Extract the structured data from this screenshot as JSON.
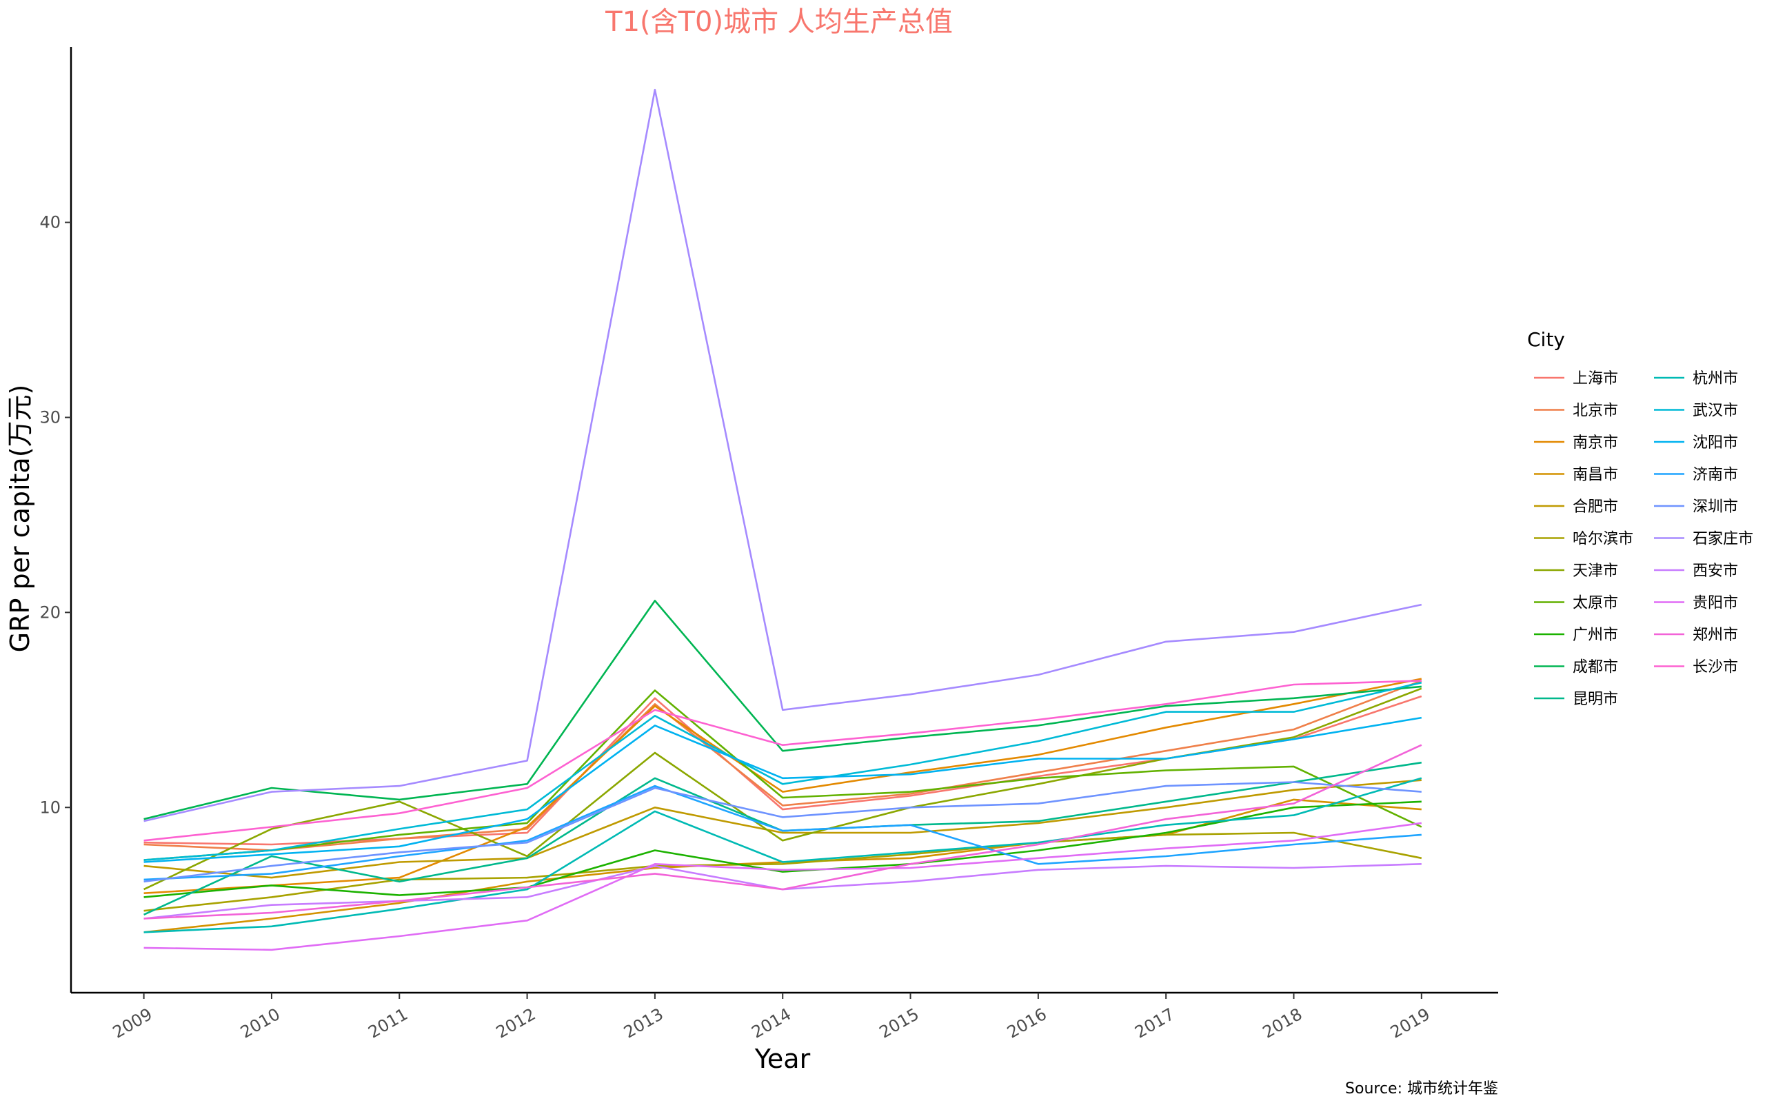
{
  "chart_data": {
    "type": "line",
    "title": "T1(含T0)城市 人均生产总值",
    "xlabel": "Year",
    "ylabel": "GRP per capita(万元)",
    "caption": "Source: 城市统计年鉴",
    "legend_title": "City",
    "legend_position": "right",
    "grid": false,
    "x": [
      2009,
      2010,
      2011,
      2012,
      2013,
      2014,
      2015,
      2016,
      2017,
      2018,
      2019
    ],
    "xlim": [
      2008.43,
      2019.6
    ],
    "ylim": [
      0.5,
      49
    ],
    "y_ticks": [
      10,
      20,
      30,
      40
    ],
    "series": [
      {
        "name": "上海市",
        "color": "#F8766D",
        "values": [
          8.2,
          8.1,
          8.4,
          8.7,
          15.6,
          9.9,
          10.6,
          11.6,
          12.5,
          13.5,
          15.7
        ]
      },
      {
        "name": "北京市",
        "color": "#EF7F49",
        "values": [
          8.1,
          7.8,
          8.4,
          8.9,
          15.3,
          10.1,
          10.7,
          11.8,
          12.9,
          14.0,
          16.5
        ]
      },
      {
        "name": "南京市",
        "color": "#E38900",
        "values": [
          5.6,
          6.0,
          6.4,
          9.0,
          15.2,
          10.8,
          11.8,
          12.7,
          14.1,
          15.3,
          16.6
        ]
      },
      {
        "name": "南昌市",
        "color": "#D39200",
        "values": [
          3.6,
          4.3,
          5.1,
          6.2,
          6.9,
          7.2,
          7.4,
          8.2,
          8.6,
          10.4,
          9.9
        ]
      },
      {
        "name": "合肥市",
        "color": "#BF9A00",
        "values": [
          7.0,
          6.4,
          7.2,
          7.4,
          10.0,
          8.7,
          8.7,
          9.2,
          10.0,
          10.9,
          11.4
        ]
      },
      {
        "name": "哈尔滨市",
        "color": "#A8A200",
        "values": [
          4.7,
          5.4,
          6.3,
          6.4,
          7.0,
          7.1,
          7.6,
          8.2,
          8.6,
          8.7,
          7.4
        ]
      },
      {
        "name": "天津市",
        "color": "#8BA700",
        "values": [
          5.8,
          8.9,
          10.3,
          7.5,
          12.8,
          8.3,
          10.0,
          11.2,
          12.5,
          13.6,
          16.1
        ]
      },
      {
        "name": "太原市",
        "color": "#62B100",
        "values": [
          7.3,
          7.8,
          8.6,
          9.2,
          16.0,
          10.5,
          10.8,
          11.5,
          11.9,
          12.1,
          9.0
        ]
      },
      {
        "name": "广州市",
        "color": "#1CB200",
        "values": [
          5.4,
          6.0,
          5.5,
          5.9,
          7.8,
          6.7,
          7.1,
          7.8,
          8.7,
          10.0,
          10.3
        ]
      },
      {
        "name": "成都市",
        "color": "#00B552",
        "values": [
          9.4,
          11.0,
          10.4,
          11.2,
          20.6,
          12.9,
          13.6,
          14.2,
          15.2,
          15.6,
          16.2
        ]
      },
      {
        "name": "昆明市",
        "color": "#00B88C",
        "values": [
          4.5,
          7.5,
          6.2,
          7.4,
          11.5,
          8.8,
          9.1,
          9.3,
          10.3,
          11.3,
          12.3
        ]
      },
      {
        "name": "杭州市",
        "color": "#00BAB4",
        "values": [
          3.6,
          3.9,
          4.8,
          5.8,
          9.8,
          7.2,
          7.7,
          8.2,
          9.1,
          9.6,
          11.5
        ]
      },
      {
        "name": "武汉市",
        "color": "#00BAD6",
        "values": [
          7.3,
          7.8,
          8.9,
          9.9,
          14.7,
          11.2,
          12.2,
          13.4,
          14.9,
          14.9,
          16.4
        ]
      },
      {
        "name": "沈阳市",
        "color": "#00B2F0",
        "values": [
          7.2,
          7.6,
          8.0,
          9.4,
          14.2,
          11.5,
          11.7,
          12.5,
          12.5,
          13.5,
          14.6
        ]
      },
      {
        "name": "济南市",
        "color": "#1EA4FF",
        "values": [
          6.3,
          6.6,
          7.5,
          8.3,
          11.1,
          8.8,
          9.1,
          7.1,
          7.5,
          8.1,
          8.6
        ]
      },
      {
        "name": "深圳市",
        "color": "#6E93FF",
        "values": [
          6.2,
          7.0,
          7.7,
          8.2,
          11.0,
          9.5,
          10.0,
          10.2,
          11.1,
          11.3,
          10.8
        ]
      },
      {
        "name": "石家庄市",
        "color": "#A58AFF",
        "values": [
          9.3,
          10.8,
          11.1,
          12.4,
          46.8,
          15.0,
          15.8,
          16.8,
          18.5,
          19.0,
          20.4
        ]
      },
      {
        "name": "西安市",
        "color": "#C77CFF",
        "values": [
          4.3,
          5.0,
          5.2,
          5.4,
          7.0,
          5.8,
          6.2,
          6.8,
          7.0,
          6.9,
          7.1
        ]
      },
      {
        "name": "贵阳市",
        "color": "#E06CF5",
        "values": [
          2.8,
          2.7,
          3.4,
          4.2,
          7.1,
          6.8,
          6.9,
          7.4,
          7.9,
          8.3,
          9.2
        ]
      },
      {
        "name": "郑州市",
        "color": "#F263D8",
        "values": [
          4.3,
          4.6,
          5.2,
          5.9,
          6.6,
          5.8,
          7.1,
          8.1,
          9.4,
          10.2,
          13.2
        ]
      },
      {
        "name": "长沙市",
        "color": "#FD61D1",
        "values": [
          8.3,
          9.0,
          9.7,
          11.0,
          15.0,
          13.2,
          13.8,
          14.5,
          15.3,
          16.3,
          16.5
        ]
      }
    ]
  }
}
